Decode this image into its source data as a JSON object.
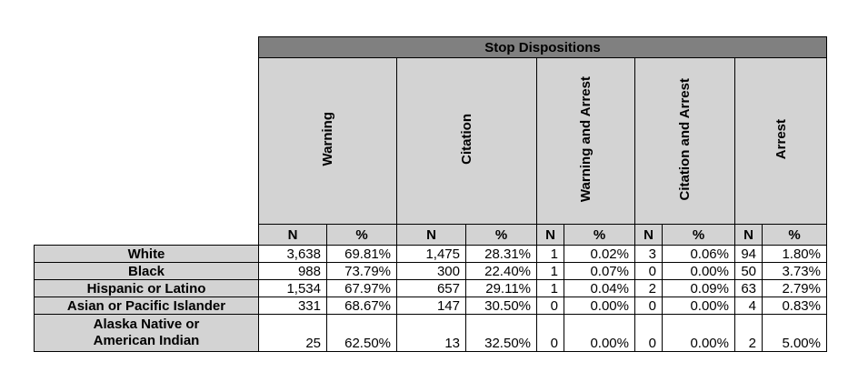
{
  "table": {
    "title": "Stop Dispositions",
    "groups": [
      "Warning",
      "Citation",
      "Warning and Arrest",
      "Citation and Arrest",
      "Arrest"
    ],
    "sub": {
      "n": "N",
      "pct": "%"
    },
    "rows": [
      {
        "label": "White",
        "cells": [
          "3,638",
          "69.81%",
          "1,475",
          "28.31%",
          "1",
          "0.02%",
          "3",
          "0.06%",
          "94",
          "1.80%"
        ]
      },
      {
        "label": "Black",
        "cells": [
          "988",
          "73.79%",
          "300",
          "22.40%",
          "1",
          "0.07%",
          "0",
          "0.00%",
          "50",
          "3.73%"
        ]
      },
      {
        "label": "Hispanic or Latino",
        "cells": [
          "1,534",
          "67.97%",
          "657",
          "29.11%",
          "1",
          "0.04%",
          "2",
          "0.09%",
          "63",
          "2.79%"
        ]
      },
      {
        "label": "Asian or Pacific Islander",
        "cells": [
          "331",
          "68.67%",
          "147",
          "30.50%",
          "0",
          "0.00%",
          "0",
          "0.00%",
          "4",
          "0.83%"
        ]
      },
      {
        "label_line1": "Alaska Native or",
        "label_line2": "American Indian",
        "cells": [
          "25",
          "62.50%",
          "13",
          "32.50%",
          "0",
          "0.00%",
          "0",
          "0.00%",
          "2",
          "5.00%"
        ]
      }
    ]
  }
}
